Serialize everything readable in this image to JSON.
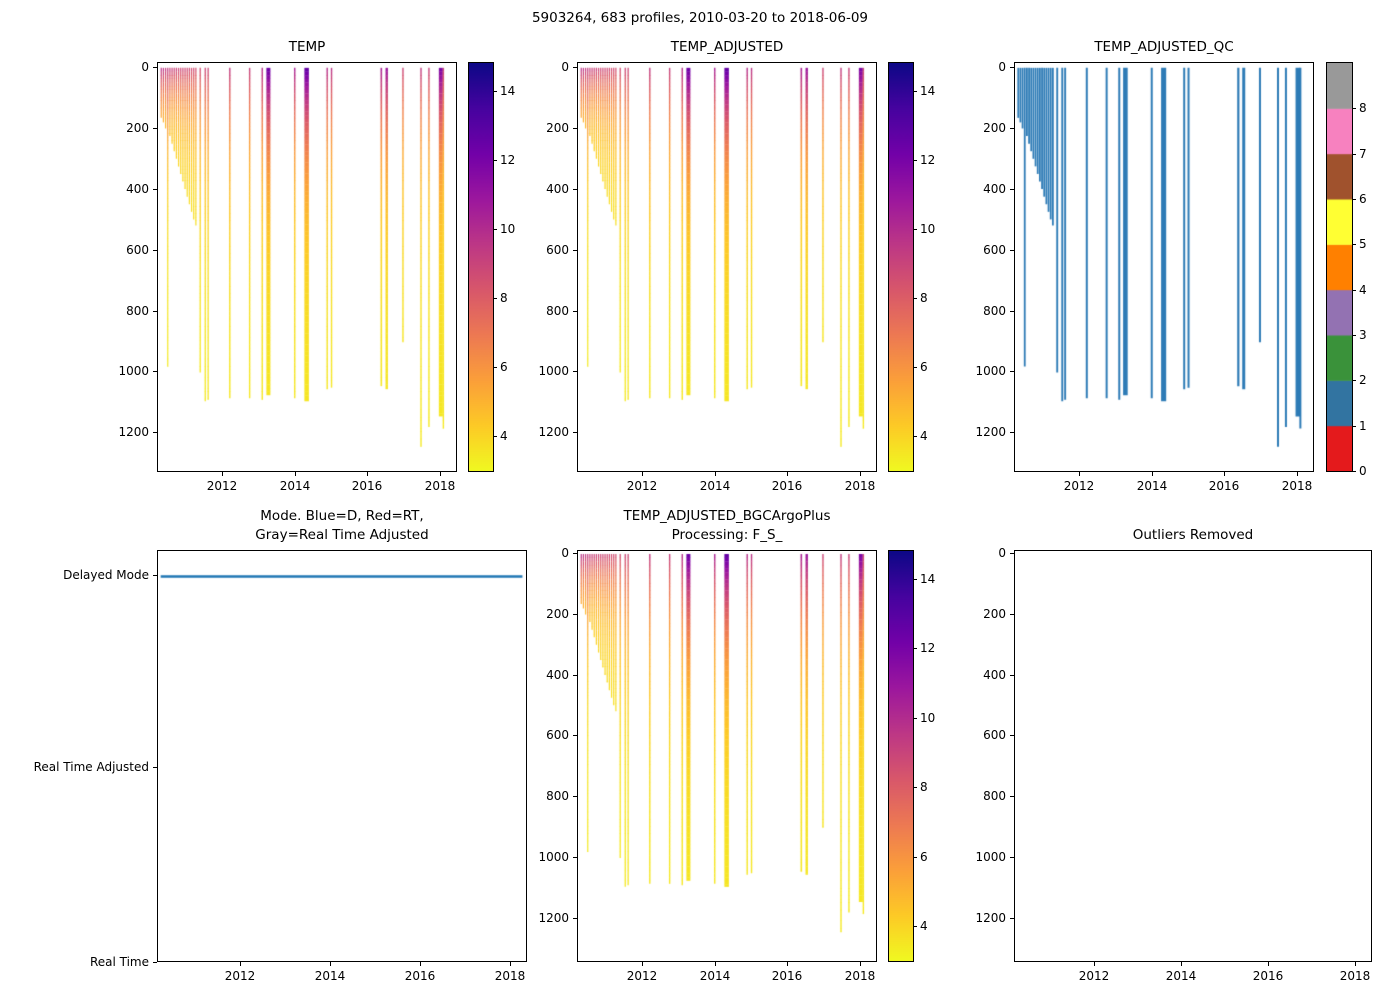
{
  "suptitle": "5903264, 683 profiles, 2010-03-20 to 2018-06-09",
  "palette": {
    "axis": "#000000",
    "qc_line": "#2d7bb6",
    "mode_line": "#1f77b4",
    "plasma_stops": [
      "#0d0887",
      "#46039f",
      "#7201a8",
      "#9c179e",
      "#bd3786",
      "#d8576b",
      "#ed7953",
      "#fb9f3a",
      "#fdca26",
      "#f0f921"
    ]
  },
  "profiles": [
    {
      "t": 2010.3,
      "d": 165,
      "s": 10.0,
      "k": 130,
      "w": 1.2
    },
    {
      "t": 2010.36,
      "d": 180,
      "s": 9.8,
      "k": 130,
      "w": 1.2
    },
    {
      "t": 2010.42,
      "d": 200,
      "s": 9.6,
      "k": 130,
      "w": 1.2
    },
    {
      "t": 2010.48,
      "d": 985,
      "s": 9.5,
      "k": 200,
      "w": 1.2
    },
    {
      "t": 2010.54,
      "d": 225,
      "s": 9.4,
      "k": 130,
      "w": 1.2
    },
    {
      "t": 2010.6,
      "d": 250,
      "s": 9.3,
      "k": 130,
      "w": 1.2
    },
    {
      "t": 2010.66,
      "d": 275,
      "s": 9.2,
      "k": 130,
      "w": 1.2
    },
    {
      "t": 2010.72,
      "d": 300,
      "s": 9.2,
      "k": 140,
      "w": 1.2
    },
    {
      "t": 2010.78,
      "d": 325,
      "s": 9.1,
      "k": 140,
      "w": 1.2
    },
    {
      "t": 2010.84,
      "d": 350,
      "s": 9.0,
      "k": 150,
      "w": 1.2
    },
    {
      "t": 2010.9,
      "d": 375,
      "s": 9.0,
      "k": 150,
      "w": 1.2
    },
    {
      "t": 2010.96,
      "d": 400,
      "s": 9.0,
      "k": 160,
      "w": 1.2
    },
    {
      "t": 2011.02,
      "d": 425,
      "s": 8.9,
      "k": 160,
      "w": 1.2
    },
    {
      "t": 2011.08,
      "d": 450,
      "s": 8.9,
      "k": 170,
      "w": 1.2
    },
    {
      "t": 2011.14,
      "d": 475,
      "s": 8.8,
      "k": 170,
      "w": 1.2
    },
    {
      "t": 2011.2,
      "d": 500,
      "s": 8.8,
      "k": 180,
      "w": 1.2
    },
    {
      "t": 2011.26,
      "d": 520,
      "s": 8.7,
      "k": 180,
      "w": 1.2
    },
    {
      "t": 2011.38,
      "d": 1005,
      "s": 8.8,
      "k": 220,
      "w": 1.3
    },
    {
      "t": 2011.52,
      "d": 1100,
      "s": 9.0,
      "k": 240,
      "w": 1.3
    },
    {
      "t": 2011.6,
      "d": 1095,
      "s": 9.0,
      "k": 240,
      "w": 1.3
    },
    {
      "t": 2012.2,
      "d": 1090,
      "s": 9.5,
      "k": 260,
      "w": 1.4
    },
    {
      "t": 2012.75,
      "d": 1090,
      "s": 9.3,
      "k": 260,
      "w": 1.4
    },
    {
      "t": 2013.1,
      "d": 1095,
      "s": 10.0,
      "k": 260,
      "w": 1.4
    },
    {
      "t": 2013.27,
      "d": 1080,
      "s": 12.5,
      "k": 260,
      "w": 4.0
    },
    {
      "t": 2014.0,
      "d": 1090,
      "s": 10.5,
      "k": 260,
      "w": 1.4
    },
    {
      "t": 2014.33,
      "d": 1100,
      "s": 12.8,
      "k": 260,
      "w": 4.5
    },
    {
      "t": 2014.9,
      "d": 1060,
      "s": 10.0,
      "k": 260,
      "w": 1.4
    },
    {
      "t": 2015.02,
      "d": 1055,
      "s": 9.8,
      "k": 260,
      "w": 1.4
    },
    {
      "t": 2016.4,
      "d": 1050,
      "s": 10.5,
      "k": 260,
      "w": 1.6
    },
    {
      "t": 2016.55,
      "d": 1060,
      "s": 11.0,
      "k": 260,
      "w": 2.4
    },
    {
      "t": 2017.0,
      "d": 905,
      "s": 9.0,
      "k": 260,
      "w": 1.4
    },
    {
      "t": 2017.5,
      "d": 1250,
      "s": 9.5,
      "k": 260,
      "w": 1.4
    },
    {
      "t": 2017.72,
      "d": 1185,
      "s": 9.2,
      "k": 260,
      "w": 1.4
    },
    {
      "t": 2018.05,
      "d": 1150,
      "s": 12.0,
      "k": 260,
      "w": 4.0
    },
    {
      "t": 2018.12,
      "d": 1190,
      "s": 9.0,
      "k": 260,
      "w": 1.4
    }
  ],
  "chart_data": [
    {
      "id": "temp",
      "type": "line",
      "title": "TEMP",
      "xlim": [
        2010.21,
        2018.47
      ],
      "ylim": [
        -16,
        1330
      ],
      "xticks": [
        2012,
        2014,
        2016,
        2018
      ],
      "yticks": [
        0,
        200,
        400,
        600,
        800,
        1000,
        1200
      ],
      "series": "profiles",
      "colorbar": {
        "type": "continuous",
        "colormap": "plasma_r",
        "clim": [
          3,
          14.8
        ],
        "ticks": [
          4,
          6,
          8,
          10,
          12,
          14
        ]
      }
    },
    {
      "id": "temp_adjusted",
      "type": "line",
      "title": "TEMP_ADJUSTED",
      "xlim": [
        2010.21,
        2018.47
      ],
      "ylim": [
        -16,
        1330
      ],
      "xticks": [
        2012,
        2014,
        2016,
        2018
      ],
      "yticks": [
        0,
        200,
        400,
        600,
        800,
        1000,
        1200
      ],
      "series": "profiles",
      "colorbar": {
        "type": "continuous",
        "colormap": "plasma_r",
        "clim": [
          3,
          14.8
        ],
        "ticks": [
          4,
          6,
          8,
          10,
          12,
          14
        ]
      }
    },
    {
      "id": "temp_adjusted_qc",
      "type": "line",
      "title": "TEMP_ADJUSTED_QC",
      "xlim": [
        2010.21,
        2018.47
      ],
      "ylim": [
        -16,
        1330
      ],
      "xticks": [
        2012,
        2014,
        2016,
        2018
      ],
      "yticks": [
        0,
        200,
        400,
        600,
        800,
        1000,
        1200
      ],
      "series": "profiles",
      "line_color": "#2d7bb6",
      "colorbar": {
        "type": "discrete",
        "ticks": [
          0,
          1,
          2,
          3,
          4,
          5,
          6,
          7,
          8
        ],
        "colors": [
          "#e41a1c",
          "#3274a1",
          "#3a923a",
          "#9372b2",
          "#ff8000",
          "#ffff33",
          "#a0522d",
          "#f781bf",
          "#999999"
        ]
      }
    },
    {
      "id": "mode",
      "type": "line",
      "title": "Mode. Blue=D, Red=RT,",
      "title2": "Gray=Real Time Adjusted",
      "xlim": [
        2010.16,
        2018.38
      ],
      "xticks": [
        2012,
        2014,
        2016,
        2018
      ],
      "categories": [
        "Delayed Mode",
        "Real Time Adjusted",
        "Real Time"
      ],
      "line": {
        "category": "Delayed Mode",
        "x0": 2010.22,
        "x1": 2018.3,
        "color": "#1f77b4",
        "width": 2.4
      }
    },
    {
      "id": "bgc",
      "type": "line",
      "title": "TEMP_ADJUSTED_BGCArgoPlus",
      "title2": "Processing: F_S_",
      "xlim": [
        2010.21,
        2018.47
      ],
      "ylim": [
        -10,
        1345
      ],
      "xticks": [
        2012,
        2014,
        2016,
        2018
      ],
      "yticks": [
        0,
        200,
        400,
        600,
        800,
        1000,
        1200
      ],
      "series": "profiles",
      "colorbar": {
        "type": "continuous",
        "colormap": "plasma_r",
        "clim": [
          3,
          14.8
        ],
        "ticks": [
          4,
          6,
          8,
          10,
          12,
          14
        ]
      }
    },
    {
      "id": "outliers",
      "type": "empty",
      "title": "Outliers Removed",
      "xlim": [
        2010.16,
        2018.38
      ],
      "ylim": [
        -10,
        1345
      ],
      "xticks": [
        2012,
        2014,
        2016,
        2018
      ],
      "yticks": [
        0,
        200,
        400,
        600,
        800,
        1000,
        1200
      ]
    }
  ]
}
